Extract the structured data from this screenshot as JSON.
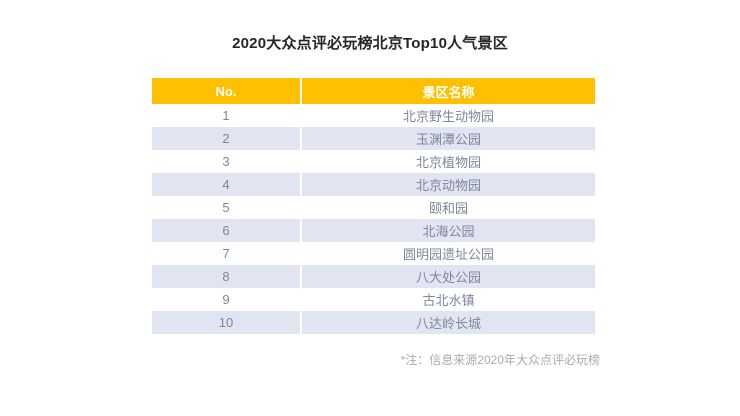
{
  "title": "2020大众点评必玩榜北京Top10人气景区",
  "table": {
    "columns": [
      {
        "label": "No."
      },
      {
        "label": "景区名称"
      }
    ],
    "rows": [
      {
        "no": "1",
        "name": "北京野生动物园"
      },
      {
        "no": "2",
        "name": "玉渊潭公园"
      },
      {
        "no": "3",
        "name": "北京植物园"
      },
      {
        "no": "4",
        "name": "北京动物园"
      },
      {
        "no": "5",
        "name": "颐和园"
      },
      {
        "no": "6",
        "name": "北海公园"
      },
      {
        "no": "7",
        "name": "圆明园遗址公园"
      },
      {
        "no": "8",
        "name": "八大处公园"
      },
      {
        "no": "9",
        "name": "古北水镇"
      },
      {
        "no": "10",
        "name": "八达岭长城"
      }
    ]
  },
  "footnote": "*注：信息来源2020年大众点评必玩榜",
  "colors": {
    "header_bg": "#FFC000",
    "header_text": "#FFFFFF",
    "row_alt_bg": "#E0E5F1",
    "cell_text": "#7E869B",
    "title_text": "#262626",
    "footnote_text": "#ABABAB",
    "page_bg": "#FFFFFF"
  }
}
